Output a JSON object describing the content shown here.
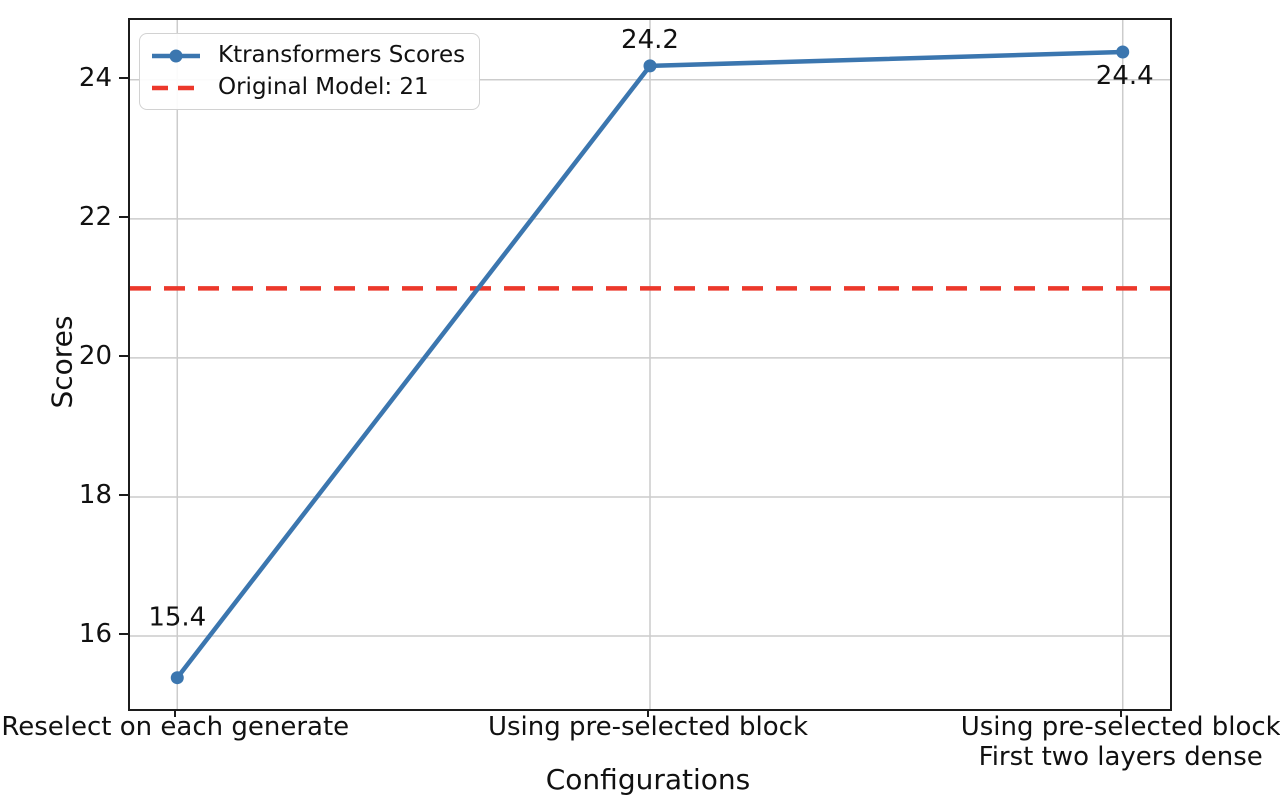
{
  "chart_data": {
    "type": "line",
    "title": "",
    "xlabel": "Configurations",
    "ylabel": "Scores",
    "categories": [
      "Reselect on each generate",
      "Using pre-selected block",
      "Using pre-selected block\nFirst two layers dense"
    ],
    "series": [
      {
        "name": "Ktransformers Scores",
        "color": "#3b76af",
        "marker": "circle",
        "values": [
          15.4,
          24.2,
          24.4
        ],
        "point_labels": [
          "15.4",
          "24.2",
          "24.4"
        ]
      }
    ],
    "reference_line": {
      "label": "Original Model: 21",
      "value": 21,
      "color": "#ec382b",
      "style": "dashed"
    },
    "yticks": [
      16,
      18,
      20,
      22,
      24
    ],
    "ylim": [
      14.95,
      24.86
    ],
    "xlim": [
      -0.1,
      2.1
    ],
    "grid": true,
    "grid_color": "#cccccc",
    "legend_position": "upper left"
  }
}
